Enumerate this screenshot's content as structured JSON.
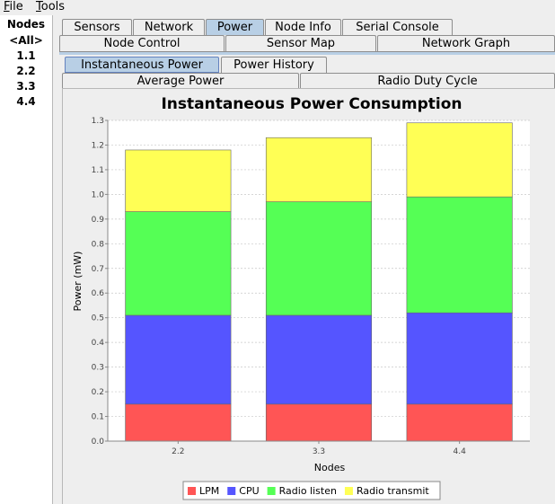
{
  "menu": {
    "file": "File",
    "tools": "Tools"
  },
  "nodes": {
    "header": "Nodes",
    "items": [
      "<All>",
      "1.1",
      "2.2",
      "3.3",
      "4.4"
    ]
  },
  "tabs_row1": [
    "Sensors",
    "Network",
    "Power",
    "Node Info",
    "Serial Console"
  ],
  "tabs_row2": [
    "Node Control",
    "Sensor Map",
    "Network Graph"
  ],
  "power_tabs": [
    "Instantaneous Power",
    "Power History"
  ],
  "power_tabs2": [
    "Average Power",
    "Radio Duty Cycle"
  ],
  "colors": {
    "lpm": "#ff5555",
    "cpu": "#5555ff",
    "listen": "#55ff55",
    "transmit": "#ffff55",
    "selected_tab": "#b8cfe5"
  },
  "chart_data": {
    "type": "bar",
    "stacked": true,
    "title": "Instantaneous Power Consumption",
    "xlabel": "Nodes",
    "ylabel": "Power (mW)",
    "ylim": [
      0,
      1.3
    ],
    "yticks": [
      "0.0",
      "0.1",
      "0.2",
      "0.3",
      "0.4",
      "0.5",
      "0.6",
      "0.7",
      "0.8",
      "0.9",
      "1.0",
      "1.1",
      "1.2",
      "1.3"
    ],
    "grid": true,
    "legend_position": "bottom",
    "categories": [
      "2.2",
      "3.3",
      "4.4"
    ],
    "series": [
      {
        "name": "LPM",
        "color": "#ff5555",
        "values": [
          0.15,
          0.15,
          0.15
        ]
      },
      {
        "name": "CPU",
        "color": "#5555ff",
        "values": [
          0.36,
          0.36,
          0.37
        ]
      },
      {
        "name": "Radio listen",
        "color": "#55ff55",
        "values": [
          0.42,
          0.46,
          0.47
        ]
      },
      {
        "name": "Radio transmit",
        "color": "#ffff55",
        "values": [
          0.25,
          0.26,
          0.3
        ]
      }
    ]
  }
}
